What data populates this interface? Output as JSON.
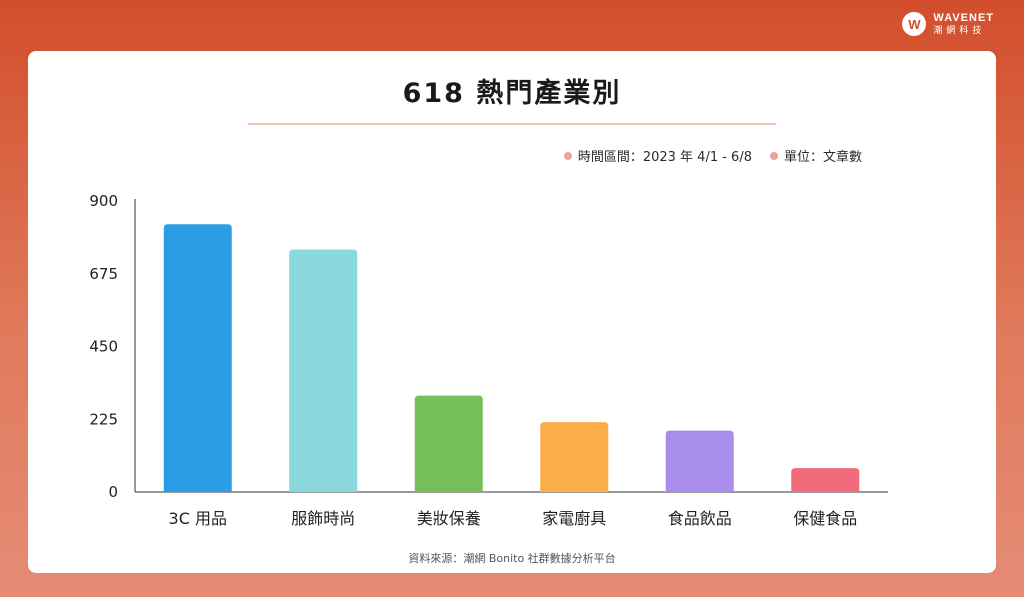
{
  "brand": {
    "logo_letter": "W",
    "name": "WAVENET",
    "subtitle": "潮網科技"
  },
  "notes": {
    "period": "時間區間：2023 年 4/1 - 6/8",
    "unit": "單位：文章數"
  },
  "source": "資料來源：潮網 Bonito 社群數據分析平台",
  "chart_data": {
    "type": "bar",
    "title": "618 熱門產業別",
    "categories": [
      "3C 用品",
      "服飾時尚",
      "美妝保養",
      "家電廚具",
      "食品飲品",
      "保健食品"
    ],
    "values": [
      828,
      750,
      298,
      216,
      190,
      74
    ],
    "colors": [
      "#2a9de4",
      "#8ad7dc",
      "#77c059",
      "#f9ae48",
      "#a98ded",
      "#f26b7d"
    ],
    "yticks": [
      "0",
      "225",
      "450",
      "675",
      "900"
    ],
    "ylim": [
      0,
      900
    ],
    "xlabel": "",
    "ylabel": "",
    "grid": false,
    "legend": "none"
  }
}
